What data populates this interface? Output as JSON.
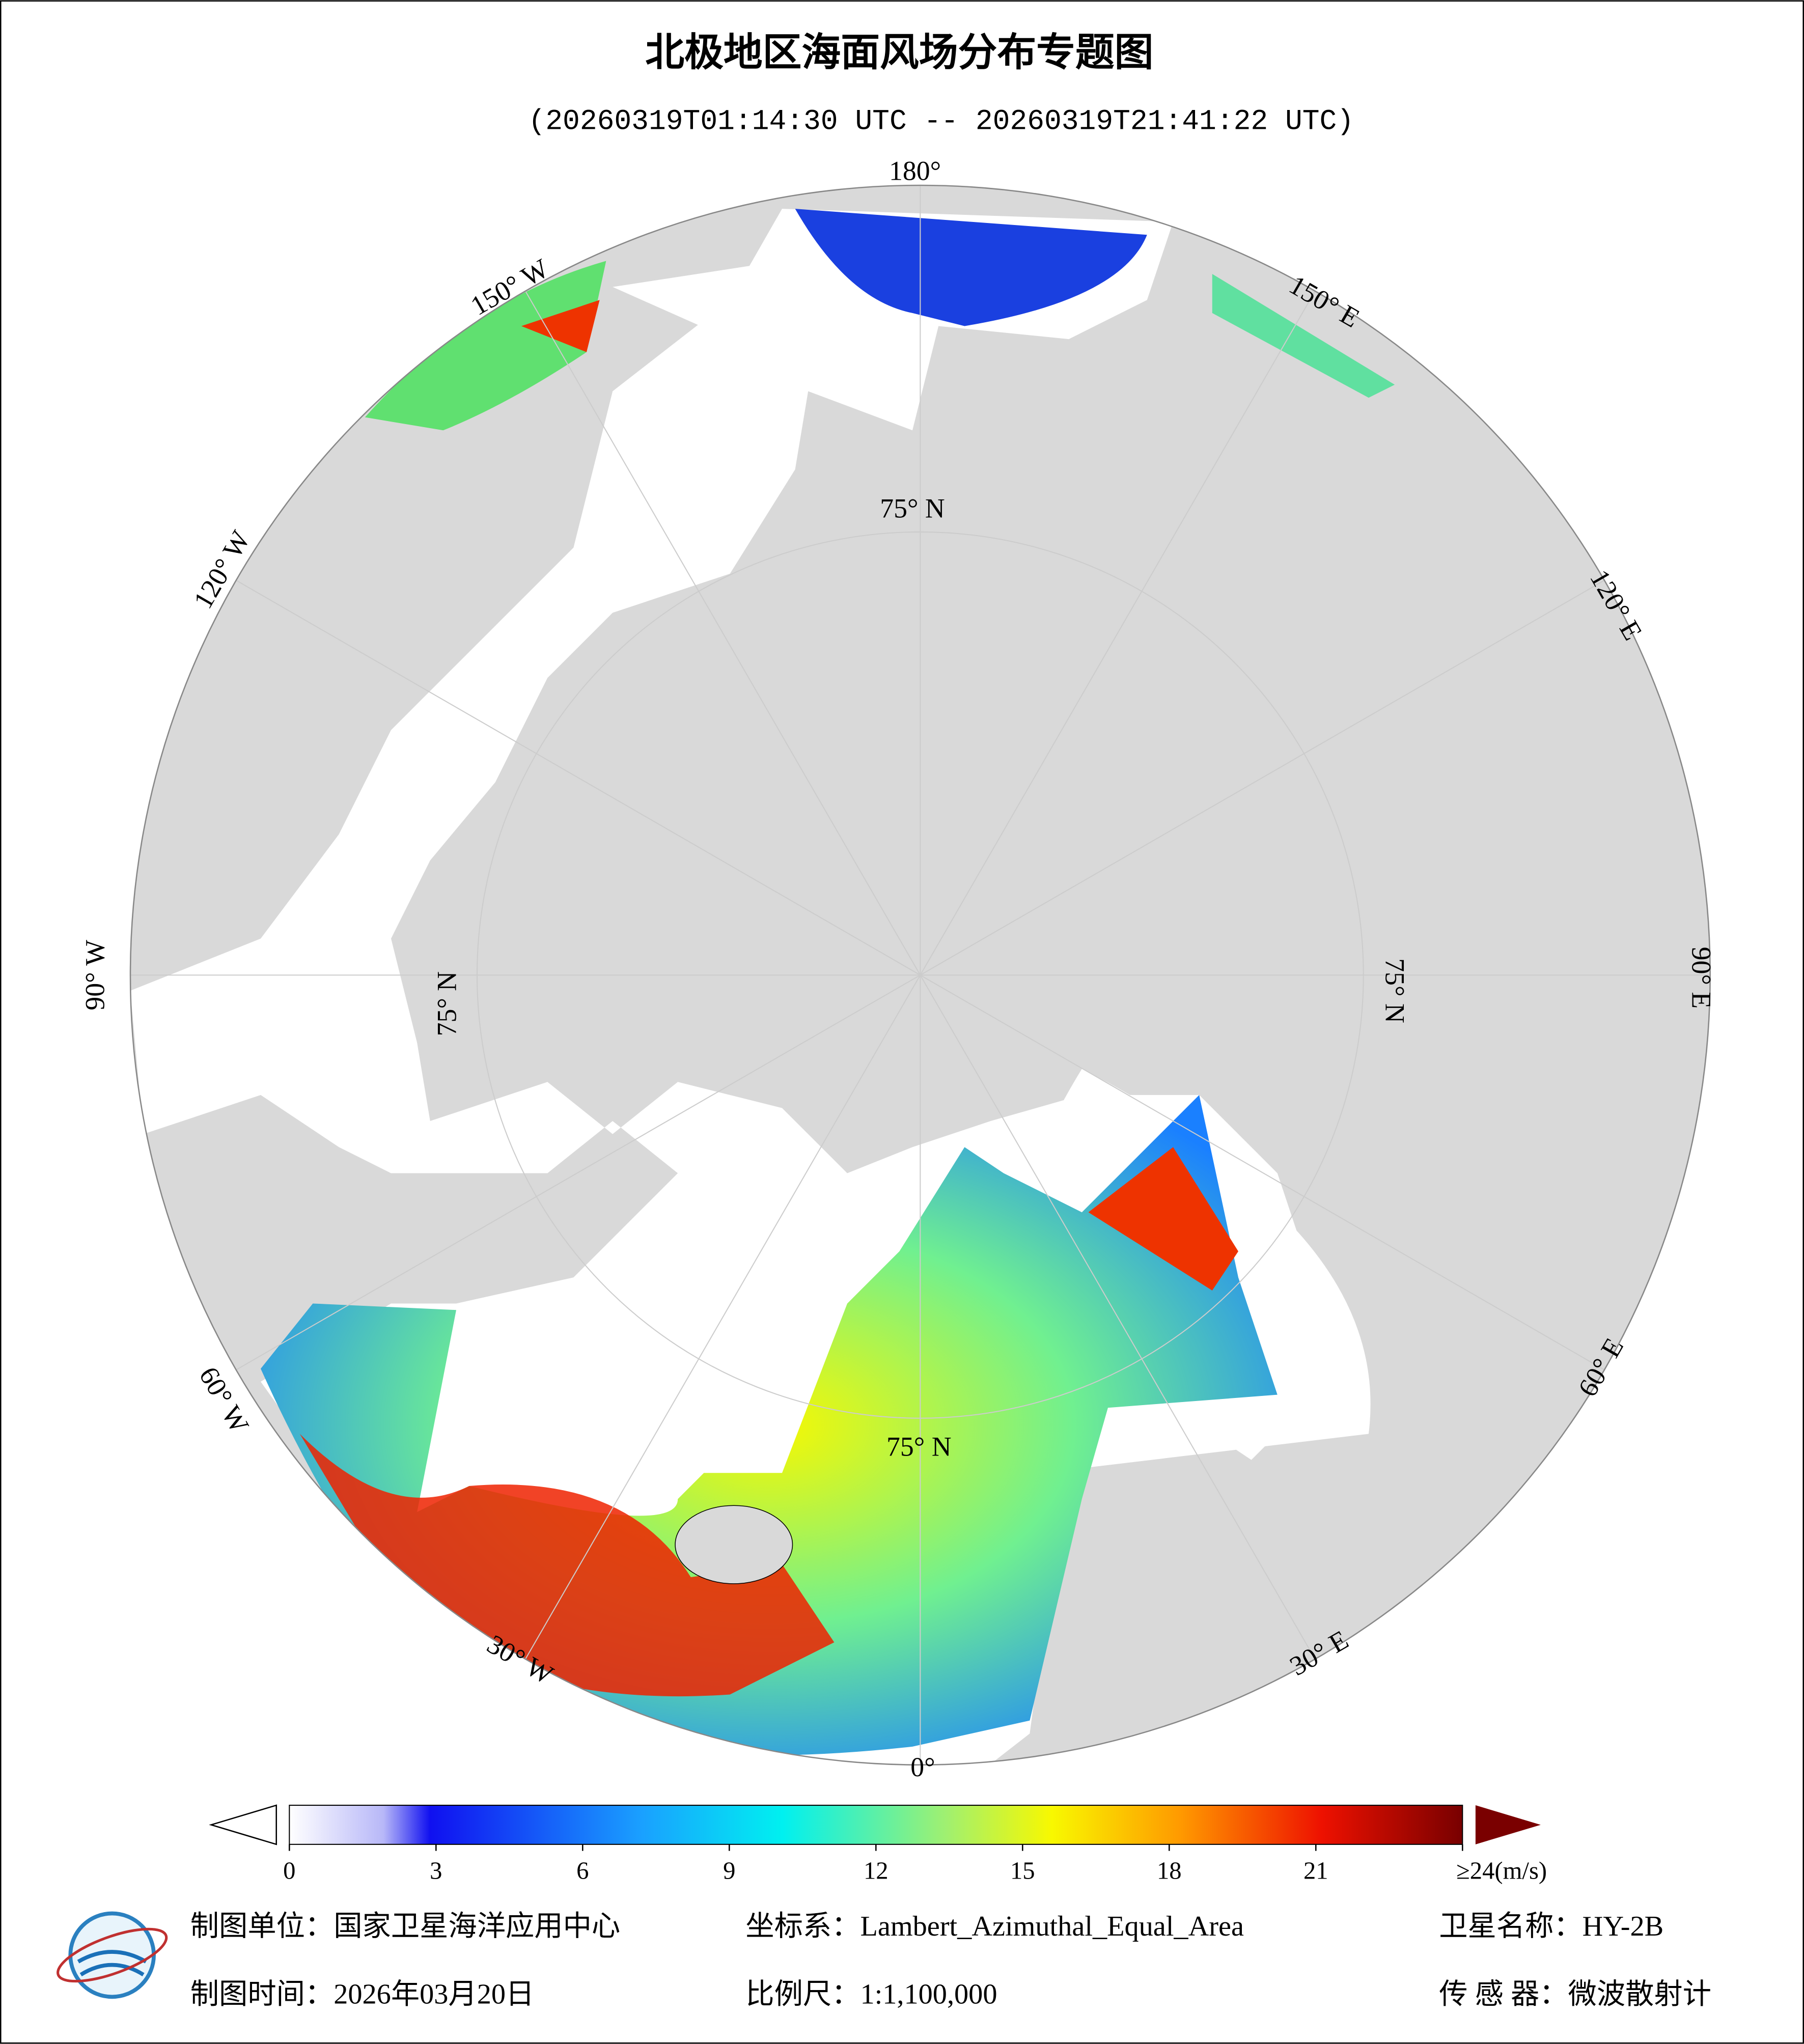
{
  "header": {
    "title": "北极地区海面风场分布专题图",
    "subtitle": "(20260319T01:14:30 UTC -- 20260319T21:41:22 UTC)"
  },
  "map": {
    "longitude_labels": [
      "180°",
      "150° E",
      "120° E",
      "90° E",
      "60° E",
      "30° E",
      "0°",
      "30° W",
      "60° W",
      "90° W",
      "120° W",
      "150° W"
    ],
    "latitude_labels": [
      "75° N",
      "75° N",
      "75° N",
      "75° N"
    ]
  },
  "colorbar": {
    "range": [
      0,
      24
    ],
    "ticks": [
      0,
      3,
      6,
      9,
      12,
      15,
      18,
      21,
      {
        "value": 24,
        "label": "≥24(m/s)"
      }
    ]
  },
  "footer": {
    "unit": "制图单位：国家卫星海洋应用中心",
    "projection": "坐标系：Lambert_Azimuthal_Equal_Area",
    "satellite": "卫星名称：HY-2B",
    "date": "制图时间：2026年03月20日",
    "scale": "比例尺：1:1,100,000",
    "sensor": "传 感 器：微波散射计"
  }
}
